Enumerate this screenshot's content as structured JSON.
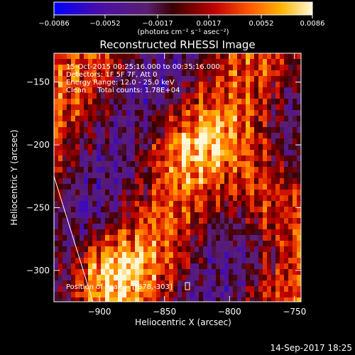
{
  "chart_data": {
    "type": "heatmap",
    "title": "Reconstructed RHESSI Image",
    "xlabel": "Heliocentric X (arcsec)",
    "ylabel": "Heliocentric Y (arcsec)",
    "xlim": [
      -935,
      -745
    ],
    "ylim": [
      -325,
      -127
    ],
    "x_ticks": [
      -900,
      -850,
      -800,
      -750
    ],
    "y_ticks": [
      -150,
      -200,
      -250,
      -300
    ],
    "x_tick_labels": [
      "−900",
      "−850",
      "−800",
      "−750"
    ],
    "y_tick_labels": [
      "−150",
      "−200",
      "−250",
      "−300"
    ],
    "colorbar": {
      "ticks": [
        -0.0086,
        -0.0052,
        -0.0017,
        0.0017,
        0.0052,
        0.0086
      ],
      "tick_labels": [
        "−0.0086",
        "−0.0052",
        "−0.0017",
        "0.0017",
        "0.0052",
        "0.0086"
      ],
      "units": "(photons cm⁻² s⁻¹ asec⁻²)",
      "colors": [
        "#0000ff",
        "#4b0ea6",
        "#5a1f70",
        "#3a0000",
        "#c00000",
        "#ff5a00",
        "#ffb400",
        "#fff7d8"
      ]
    },
    "annotations": {
      "time": "15-Oct-2015 00:25:16.000 to 00:35:16.000",
      "detectors": "Detectors: 1F 5F 7F, Att 0",
      "energy": "Energy Range: 12.0 - 25.0 keV",
      "method": "Clean     Total counts: 1.78E+04",
      "peak": "Position of Peak = [-878,-303]"
    },
    "limb_line": {
      "x": [
        -935,
        -905
      ],
      "y": [
        -225,
        -325
      ]
    },
    "peak_position": [
      -878,
      -303
    ]
  },
  "footer": {
    "timestamp": "14-Sep-2017 18:25"
  }
}
